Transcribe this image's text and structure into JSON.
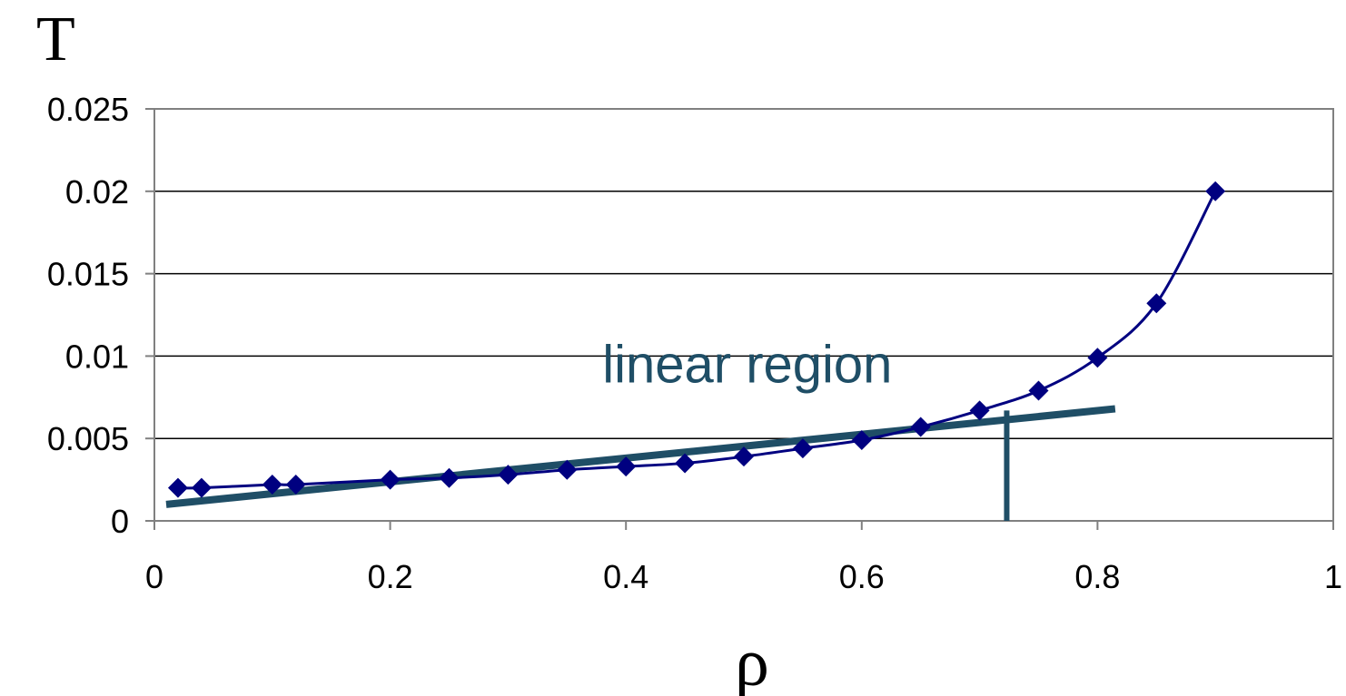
{
  "chart_data": {
    "type": "line",
    "xlabel": "ρ",
    "ylabel": "T",
    "xlim": [
      0,
      1
    ],
    "ylim": [
      0,
      0.025
    ],
    "x_ticks": [
      0,
      0.2,
      0.4,
      0.6,
      0.8,
      1
    ],
    "y_ticks": [
      0,
      0.005,
      0.01,
      0.015,
      0.02,
      0.025
    ],
    "x_tick_labels": [
      "0",
      "0.2",
      "0.4",
      "0.6",
      "0.8",
      "1"
    ],
    "y_tick_labels": [
      "0",
      "0.005",
      "0.01",
      "0.015",
      "0.02",
      "0.025"
    ],
    "grid": "horizontal",
    "series": [
      {
        "marker": "diamond",
        "color": "#000080",
        "x": [
          0.02,
          0.04,
          0.1,
          0.12,
          0.2,
          0.25,
          0.3,
          0.35,
          0.4,
          0.45,
          0.5,
          0.55,
          0.6,
          0.65,
          0.7,
          0.75,
          0.8,
          0.85,
          0.9
        ],
        "y": [
          0.002,
          0.002,
          0.0022,
          0.0022,
          0.0025,
          0.0026,
          0.0028,
          0.0031,
          0.0033,
          0.0035,
          0.0039,
          0.0044,
          0.0049,
          0.0057,
          0.0067,
          0.0079,
          0.0099,
          0.0132,
          0.02
        ]
      }
    ],
    "annotations": [
      {
        "text": "linear region",
        "color": "#1f4e66",
        "x": 0.38,
        "y": 0.0084
      }
    ],
    "reference_line": {
      "color": "#1f4e66",
      "x": [
        0.01,
        0.815
      ],
      "y": [
        0.001,
        0.0068
      ]
    },
    "marker_line": {
      "color": "#1f4e66",
      "x": 0.723,
      "y": [
        0,
        0.0067
      ]
    }
  }
}
